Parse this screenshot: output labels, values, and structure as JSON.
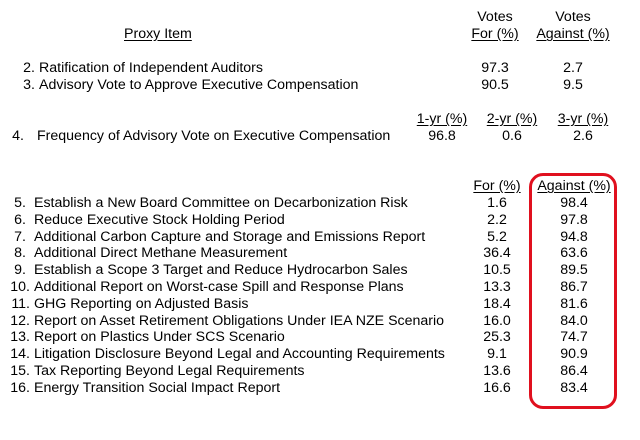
{
  "header": {
    "proxy_item": "Proxy Item",
    "votes_for_line1": "Votes",
    "votes_for_line2": "For (%)",
    "votes_against_line1": "Votes",
    "votes_against_line2": "Against (%)"
  },
  "management_items": [
    {
      "num": "2.",
      "label": "Ratification of Independent Auditors",
      "for": "97.3",
      "against": "2.7"
    },
    {
      "num": "3.",
      "label": "Advisory Vote to Approve Executive Compensation",
      "for": "90.5",
      "against": "9.5"
    }
  ],
  "frequency": {
    "num": "4.",
    "label": "Frequency of Advisory Vote on Executive Compensation",
    "col1_header": "1-yr (%)",
    "col1_value": "96.8",
    "col2_header": "2-yr (%)",
    "col2_value": "0.6",
    "col3_header": "3-yr (%)",
    "col3_value": "2.6"
  },
  "shareholder_header": {
    "for": "For (%)",
    "against": "Against (%)"
  },
  "shareholder_items": [
    {
      "num": "5.",
      "label": "Establish a New Board Committee on Decarbonization Risk",
      "for": "1.6",
      "against": "98.4"
    },
    {
      "num": "6.",
      "label": "Reduce Executive Stock Holding Period",
      "for": "2.2",
      "against": "97.8"
    },
    {
      "num": "7.",
      "label": "Additional Carbon Capture and Storage and Emissions Report",
      "for": "5.2",
      "against": "94.8"
    },
    {
      "num": "8.",
      "label": "Additional Direct Methane Measurement",
      "for": "36.4",
      "against": "63.6"
    },
    {
      "num": "9.",
      "label": "Establish a Scope 3 Target and Reduce Hydrocarbon Sales",
      "for": "10.5",
      "against": "89.5"
    },
    {
      "num": "10.",
      "label": "Additional Report on Worst-case Spill and Response Plans",
      "for": "13.3",
      "against": "86.7"
    },
    {
      "num": "11.",
      "label": "GHG Reporting on Adjusted Basis",
      "for": "18.4",
      "against": "81.6"
    },
    {
      "num": "12.",
      "label": "Report on Asset Retirement Obligations Under IEA NZE Scenario",
      "for": "16.0",
      "against": "84.0"
    },
    {
      "num": "13.",
      "label": "Report on Plastics Under SCS Scenario",
      "for": "25.3",
      "against": "74.7"
    },
    {
      "num": "14.",
      "label": "Litigation Disclosure Beyond Legal and Accounting Requirements",
      "for": "9.1",
      "against": "90.9"
    },
    {
      "num": "15.",
      "label": "Tax Reporting Beyond Legal Requirements",
      "for": "13.6",
      "against": "86.4"
    },
    {
      "num": "16.",
      "label": "Energy Transition Social Impact Report",
      "for": "16.6",
      "against": "83.4"
    }
  ],
  "highlight_color": "#e0101e"
}
